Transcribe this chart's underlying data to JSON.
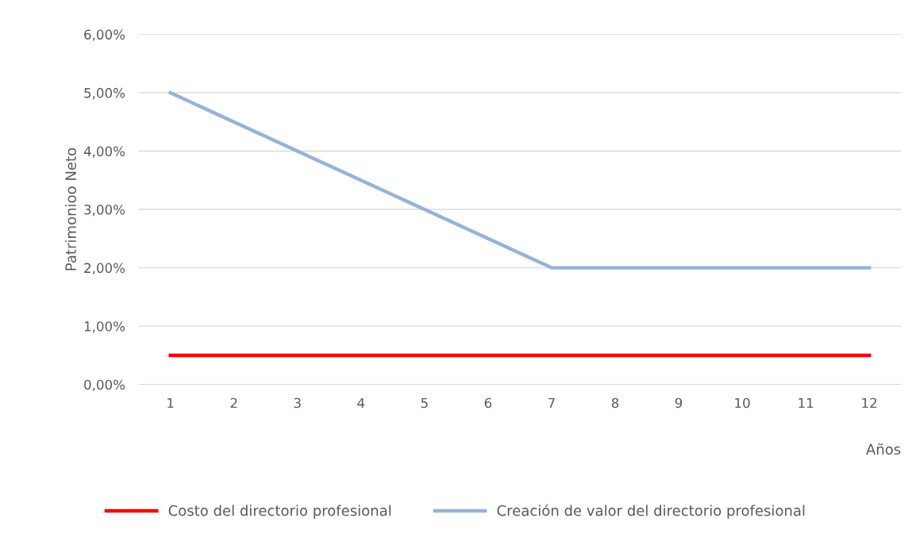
{
  "chart_data": {
    "type": "line",
    "xlabel": "Años",
    "ylabel": "Patrimonioo Neto",
    "categories": [
      "1",
      "2",
      "3",
      "4",
      "5",
      "6",
      "7",
      "8",
      "9",
      "10",
      "11",
      "12"
    ],
    "series": [
      {
        "name": "Costo del directorio profesional",
        "color": "#ff0000",
        "values": [
          0.5,
          0.5,
          0.5,
          0.5,
          0.5,
          0.5,
          0.5,
          0.5,
          0.5,
          0.5,
          0.5,
          0.5
        ]
      },
      {
        "name": "Creación de valor del directorio profesional",
        "color": "#95b3d7",
        "values": [
          5,
          4.5,
          4,
          3.5,
          3,
          2.5,
          2,
          2,
          2,
          2,
          2,
          2
        ]
      }
    ],
    "ylim": [
      0,
      6
    ],
    "yticks": [
      {
        "value": 0,
        "label": "0,00%"
      },
      {
        "value": 1,
        "label": "1,00%"
      },
      {
        "value": 2,
        "label": "2,00%"
      },
      {
        "value": 3,
        "label": "3,00%"
      },
      {
        "value": 4,
        "label": "4,00%"
      },
      {
        "value": 5,
        "label": "5,00%"
      },
      {
        "value": 6,
        "label": "6,00%"
      }
    ],
    "grid": "y",
    "legend": "bottom",
    "marker": "none",
    "line_style": "solid"
  }
}
